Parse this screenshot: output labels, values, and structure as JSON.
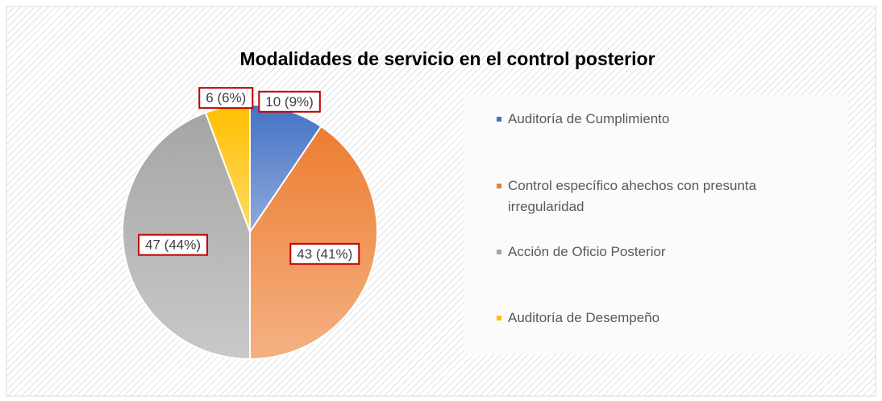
{
  "chart_data": {
    "type": "pie",
    "title": "Modalidades  de servicio en el control posterior",
    "categories": [
      "Auditoría de Cumplimiento",
      "Control específico ahechos con presunta irregularidad",
      "Acción de Oficio Posterior",
      "Auditoría de Desempeño"
    ],
    "values": [
      10,
      43,
      47,
      6
    ],
    "value_labels": [
      "10 (9%)",
      "43 (41%)",
      "47 (44%)",
      "6 (6%)"
    ],
    "colors": [
      "#4472c4",
      "#ed7d31",
      "#a5a5a5",
      "#ffc000"
    ],
    "legend": "right"
  }
}
